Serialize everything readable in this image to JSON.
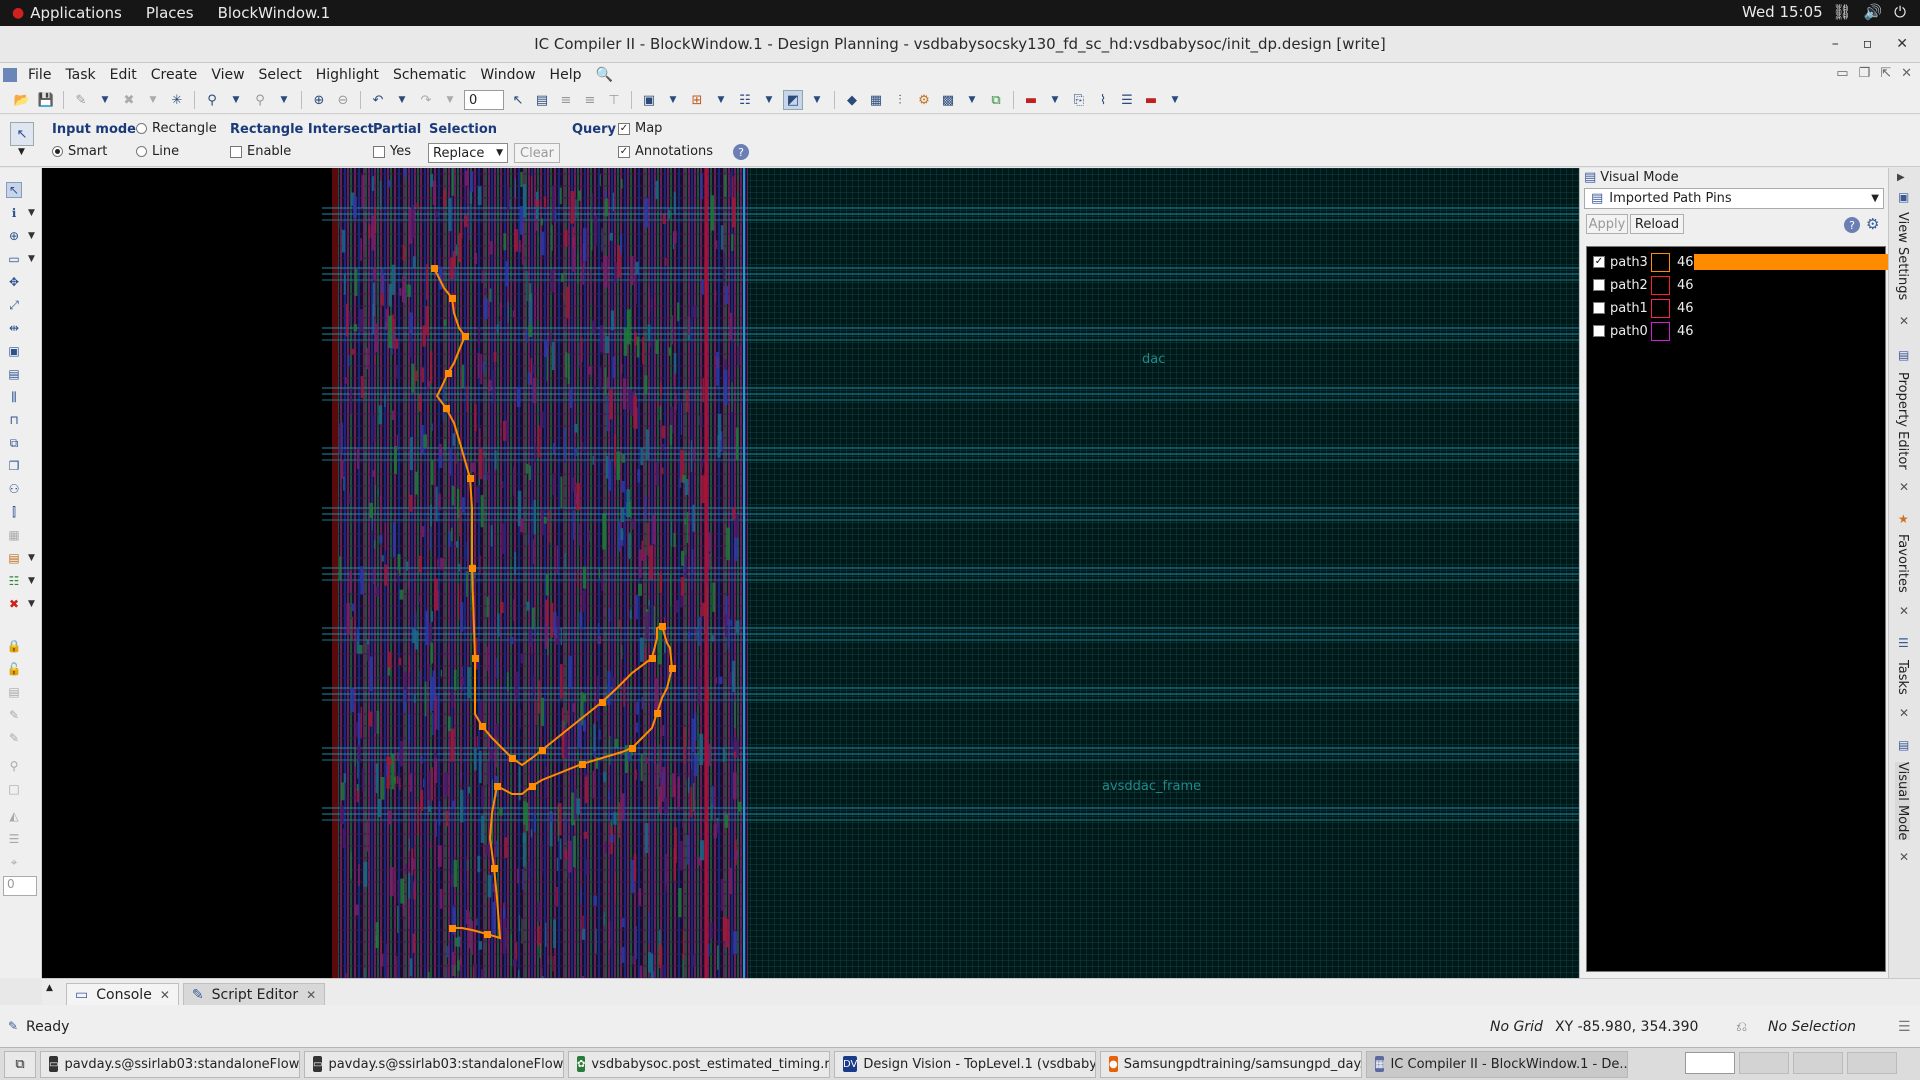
{
  "topbar": {
    "applications": "Applications",
    "places": "Places",
    "window": "BlockWindow.1",
    "clock": "Wed 15:05"
  },
  "window": {
    "title": "IC Compiler II - BlockWindow.1 - Design Planning - vsdbabysocsky130_fd_sc_hd:vsdbabysoc/init_dp.design [write]"
  },
  "menu": {
    "file": "File",
    "task": "Task",
    "edit": "Edit",
    "create": "Create",
    "view": "View",
    "select": "Select",
    "highlight": "Highlight",
    "schematic": "Schematic",
    "window": "Window",
    "help": "Help"
  },
  "toolbar": {
    "spin_value": "0"
  },
  "options": {
    "input_mode_label": "Input mode",
    "rectangle": "Rectangle",
    "smart": "Smart",
    "line": "Line",
    "rect_intersect_label": "Rectangle Intersect",
    "enable": "Enable",
    "partial_label": "Partial",
    "yes": "Yes",
    "selection_label": "Selection",
    "selection_value": "Replace",
    "clear": "Clear",
    "query_label": "Query",
    "map": "Map",
    "annotations": "Annotations"
  },
  "lefttools": {
    "spin_value": "0"
  },
  "canvas": {
    "label_dac": "dac",
    "label_frame": "avsddac_frame"
  },
  "visual_mode": {
    "title": "Visual Mode",
    "mode_value": "Imported Path Pins",
    "apply": "Apply",
    "reload": "Reload",
    "paths": [
      {
        "name": "path3",
        "count": "46",
        "checked": true,
        "color": "#ff8c00"
      },
      {
        "name": "path2",
        "count": "46",
        "checked": false,
        "color": "#ff2020"
      },
      {
        "name": "path1",
        "count": "46",
        "checked": false,
        "color": "#ff2060"
      },
      {
        "name": "path0",
        "count": "46",
        "checked": false,
        "color": "#d020d0"
      }
    ]
  },
  "sidetabs": {
    "view_settings": "View Settings",
    "property_editor": "Property Editor",
    "favorites": "Favorites",
    "tasks": "Tasks",
    "visual_mode": "Visual Mode"
  },
  "console_tabs": {
    "console": "Console",
    "script_editor": "Script Editor"
  },
  "status": {
    "ready": "Ready",
    "grid": "No Grid",
    "xy": "XY -85.980, 354.390",
    "selection": "No Selection"
  },
  "taskbar": {
    "items": [
      "pavday.s@ssirlab03:standaloneFlow",
      "pavday.s@ssirlab03:standaloneFlow",
      "vsdbabysoc.post_estimated_timing.r...",
      "Design Vision - TopLevel.1 (vsdbaby...",
      "Samsungpdtraining/samsungpd_day...",
      "IC Compiler II - BlockWindow.1 - De..."
    ]
  }
}
